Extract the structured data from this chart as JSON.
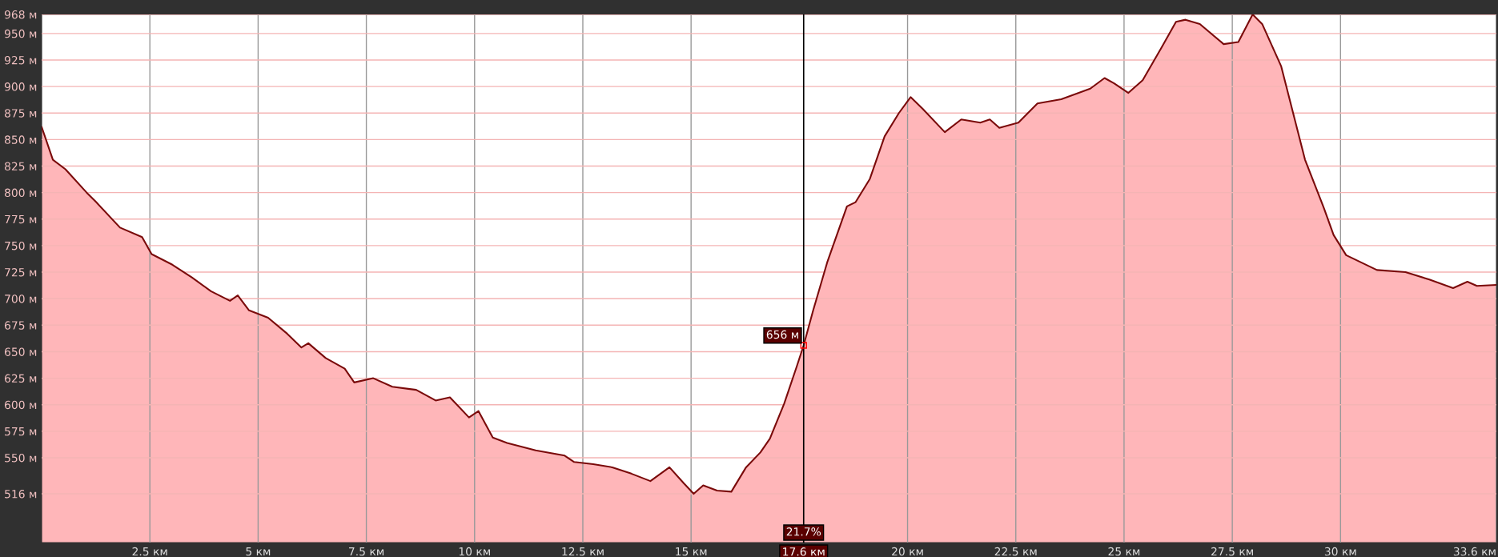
{
  "chart_data": {
    "type": "area",
    "x": [
      0,
      0.26,
      0.55,
      1.04,
      1.26,
      1.81,
      2.32,
      2.54,
      3.02,
      3.47,
      3.91,
      4.35,
      4.53,
      4.79,
      5.23,
      5.67,
      6.0,
      6.16,
      6.56,
      7.0,
      7.22,
      7.66,
      8.1,
      8.65,
      9.1,
      9.43,
      9.87,
      10.09,
      10.42,
      10.75,
      11.41,
      12.08,
      12.3,
      12.74,
      13.18,
      13.62,
      14.06,
      14.5,
      14.83,
      15.06,
      15.28,
      15.6,
      15.93,
      16.27,
      16.6,
      16.82,
      17.15,
      17.44,
      17.6,
      17.82,
      18.15,
      18.6,
      18.8,
      19.13,
      19.47,
      19.8,
      20.07,
      20.35,
      20.86,
      21.24,
      21.68,
      21.9,
      22.12,
      22.56,
      23.0,
      23.55,
      24.22,
      24.55,
      24.77,
      25.1,
      25.43,
      25.87,
      26.2,
      26.42,
      26.75,
      27.3,
      27.64,
      27.97,
      28.19,
      28.63,
      29.18,
      29.62,
      29.84,
      30.13,
      30.84,
      31.5,
      32.05,
      32.6,
      32.93,
      33.15,
      33.6
    ],
    "series": [
      {
        "color": "#7a0a0a",
        "values": [
          862,
          831,
          822,
          800,
          791,
          767,
          758,
          742,
          732,
          720,
          707,
          698,
          703,
          689,
          682,
          667,
          654,
          658,
          644,
          634,
          621,
          625,
          617,
          614,
          604,
          607,
          588,
          594,
          569,
          564,
          557,
          552,
          546,
          544,
          541,
          535,
          528,
          541,
          526,
          516,
          524,
          519,
          518,
          541,
          555,
          568,
          601,
          636,
          656,
          689,
          735,
          787,
          791,
          813,
          853,
          875,
          890,
          879,
          857,
          869,
          866,
          869,
          861,
          866,
          884,
          888,
          898,
          908,
          903,
          894,
          906,
          937,
          961,
          963,
          959,
          940,
          942,
          968,
          959,
          919,
          831,
          785,
          760,
          741,
          727,
          725,
          718,
          710,
          716,
          712,
          713
        ]
      }
    ],
    "xlim": [
      0,
      33.6
    ],
    "ylim": [
      470,
      968
    ],
    "xticks": [
      {
        "value": 2.5,
        "label": "2.5 км"
      },
      {
        "value": 5,
        "label": "5 км"
      },
      {
        "value": 7.5,
        "label": "7.5 км"
      },
      {
        "value": 10,
        "label": "10 км"
      },
      {
        "value": 12.5,
        "label": "12.5 км"
      },
      {
        "value": 15,
        "label": "15 км"
      },
      {
        "value": 20,
        "label": "20 км"
      },
      {
        "value": 22.5,
        "label": "22.5 км"
      },
      {
        "value": 25,
        "label": "25 км"
      },
      {
        "value": 27.5,
        "label": "27.5 км"
      },
      {
        "value": 30,
        "label": "30 км"
      },
      {
        "value": 33.6,
        "label": "33.6 км"
      }
    ],
    "yticks": [
      {
        "value": 516,
        "label": "516 м"
      },
      {
        "value": 550,
        "label": "550 м"
      },
      {
        "value": 575,
        "label": "575 м"
      },
      {
        "value": 600,
        "label": "600 м"
      },
      {
        "value": 625,
        "label": "625 м"
      },
      {
        "value": 650,
        "label": "650 м"
      },
      {
        "value": 675,
        "label": "675 м"
      },
      {
        "value": 700,
        "label": "700 м"
      },
      {
        "value": 725,
        "label": "725 м"
      },
      {
        "value": 750,
        "label": "750 м"
      },
      {
        "value": 775,
        "label": "775 м"
      },
      {
        "value": 800,
        "label": "800 м"
      },
      {
        "value": 825,
        "label": "825 м"
      },
      {
        "value": 850,
        "label": "850 м"
      },
      {
        "value": 875,
        "label": "875 м"
      },
      {
        "value": 900,
        "label": "900 м"
      },
      {
        "value": 925,
        "label": "925 м"
      },
      {
        "value": 950,
        "label": "950 м"
      },
      {
        "value": 968,
        "label": "968 м"
      }
    ],
    "grid": true,
    "ref_lines": [
      {
        "axis": "x",
        "value": 17.6,
        "label": "17.6 км",
        "color": "#000000"
      }
    ],
    "annotations": [
      {
        "text": "656 м",
        "x": 17.6,
        "y": 656
      },
      "21.7%"
    ]
  }
}
